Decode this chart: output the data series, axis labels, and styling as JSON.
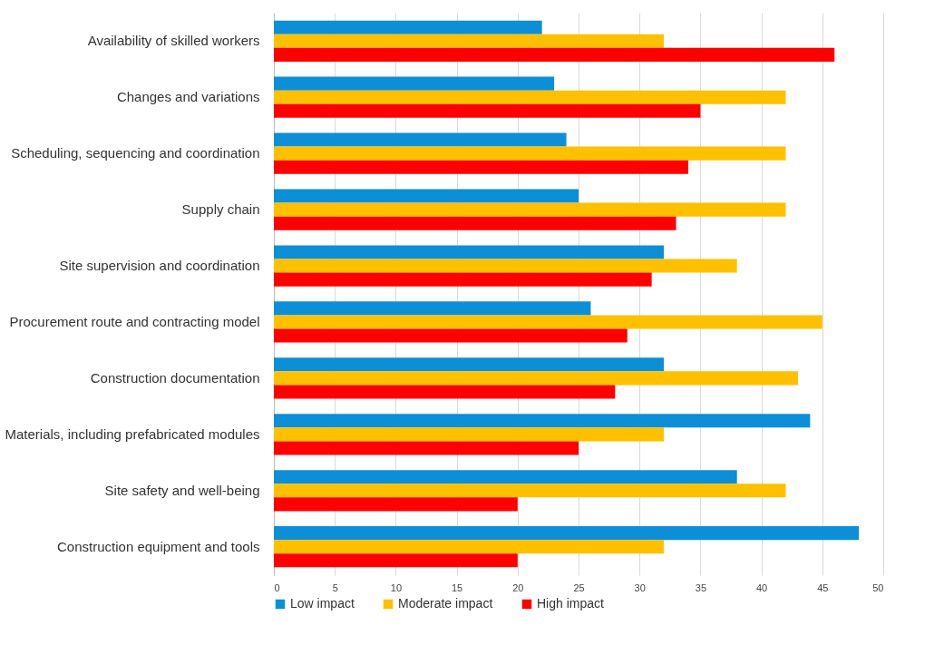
{
  "chart_data": {
    "type": "bar",
    "orientation": "horizontal",
    "categories": [
      "Availability of skilled workers",
      "Changes and variations",
      "Scheduling, sequencing and coordination",
      "Supply chain",
      "Site supervision and coordination",
      "Procurement route and contracting model",
      "Construction documentation",
      "Materials, including prefabricated modules",
      "Site safety and well-being",
      "Construction equipment and tools"
    ],
    "series": [
      {
        "name": "Low impact",
        "color": "#0c8fd6",
        "values": [
          22,
          23,
          24,
          25,
          32,
          26,
          32,
          44,
          38,
          48
        ]
      },
      {
        "name": "Moderate impact",
        "color": "#ffc000",
        "values": [
          32,
          42,
          42,
          42,
          38,
          45,
          43,
          32,
          42,
          32
        ]
      },
      {
        "name": "High impact",
        "color": "#ff0000",
        "values": [
          46,
          35,
          34,
          33,
          31,
          29,
          28,
          25,
          20,
          20
        ]
      }
    ],
    "xlim": [
      0,
      50
    ],
    "xticks": [
      0,
      5,
      10,
      15,
      20,
      25,
      30,
      35,
      40,
      45,
      50
    ],
    "grid": "x",
    "legend": "bottom"
  }
}
